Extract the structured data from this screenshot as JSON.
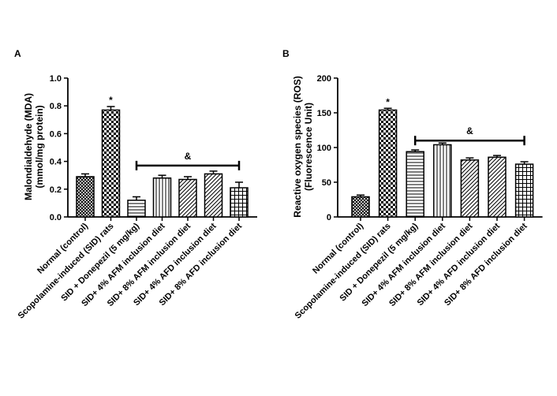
{
  "colors": {
    "axis": "#000000",
    "bar_fill": "#ffffff",
    "pattern": "#000000"
  },
  "chart_data": [
    {
      "type": "bar",
      "panel_label": "A",
      "title": "",
      "ylabel_lines": [
        "Malondialdehyde (MDA)",
        "(mmol/mg protein)"
      ],
      "xlabel": "",
      "ylim": [
        0,
        1.0
      ],
      "yticks": [
        0.0,
        0.2,
        0.4,
        0.6,
        0.8,
        1.0
      ],
      "ytick_labels": [
        "0.0",
        "0.2",
        "0.4",
        "0.6",
        "0.8",
        "1.0"
      ],
      "categories": [
        "Normal (control)",
        "Scopolamine-induced (SID) rats",
        "SID + Donepezil (5 mg/kg)",
        "SID+ 4% AFM inclusion diet",
        "SID+ 8% AFM inclusion diet",
        "SID+ 4% AFD inclusion diet",
        "SID+ 8% AFD inclusion diet"
      ],
      "values": [
        0.29,
        0.77,
        0.12,
        0.28,
        0.27,
        0.31,
        0.21
      ],
      "errors": [
        0.02,
        0.025,
        0.025,
        0.02,
        0.02,
        0.02,
        0.04
      ],
      "patterns": [
        "crosshatch",
        "checker",
        "hlines",
        "vlines",
        "diag",
        "diag",
        "grid"
      ],
      "annotations": [
        {
          "text": "*",
          "category_index": 1
        },
        {
          "text": "&",
          "from_index": 2,
          "to_index": 6,
          "y": 0.37
        }
      ]
    },
    {
      "type": "bar",
      "panel_label": "B",
      "title": "",
      "ylabel_lines": [
        "Reactive oxygen species (ROS)",
        "(Fluorescence Unit)"
      ],
      "xlabel": "",
      "ylim": [
        0,
        200
      ],
      "yticks": [
        0,
        50,
        100,
        150,
        200
      ],
      "ytick_labels": [
        "0",
        "50",
        "100",
        "150",
        "200"
      ],
      "categories": [
        "Normal (control)",
        "Scopolamine-induced (SID) rats",
        "SID + Donepezil (5 mg/kg)",
        "SID+ 4% AFM inclusion diet",
        "SID+ 8% AFM inclusion diet",
        "SID+ 4% AFD inclusion diet",
        "SID+ 8% AFD inclusion diet"
      ],
      "values": [
        29,
        154,
        94,
        104,
        82,
        86,
        76
      ],
      "errors": [
        2.5,
        2.5,
        2.5,
        2.5,
        3,
        2.5,
        3.5
      ],
      "patterns": [
        "crosshatch",
        "checker",
        "hlines",
        "vlines",
        "diag",
        "diag",
        "grid"
      ],
      "annotations": [
        {
          "text": "*",
          "category_index": 1
        },
        {
          "text": "&",
          "from_index": 2,
          "to_index": 6,
          "y": 110
        }
      ]
    }
  ]
}
